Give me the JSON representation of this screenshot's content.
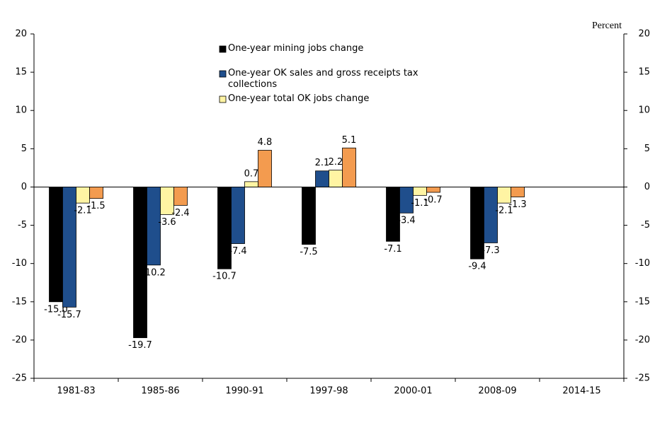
{
  "chart_data": {
    "type": "bar",
    "y_label": "Percent",
    "categories": [
      "1981-83",
      "1985-86",
      "1990-91",
      "1997-98",
      "2000-01",
      "2008-09",
      "2014-15"
    ],
    "series": [
      {
        "name": "One-year mining jobs change",
        "color": "#000000",
        "values": [
          -15,
          -19.7,
          -10.7,
          -7.5,
          -7.1,
          -9.4,
          null
        ],
        "value_labels": [
          "-15.0",
          "-19.7",
          "-10.7",
          "-7.5",
          "-7.1",
          "-9.4",
          null
        ]
      },
      {
        "name": "One-year OK sales and gross receipts tax collections",
        "color": "#1f4e8c",
        "values": [
          -15.7,
          -10.2,
          -7.4,
          2.1,
          -3.4,
          -7.3,
          null
        ]
      },
      {
        "name": "One-year total OK jobs change",
        "color": "#fff4a3",
        "values": [
          -2.1,
          -3.6,
          0.7,
          2.2,
          -1.1,
          -2.1,
          null
        ]
      },
      {
        "color": "#f39b4f",
        "values": [
          -1.5,
          -2.4,
          4.8,
          5.1,
          -0.7,
          -1.3,
          null
        ]
      }
    ],
    "ylim": [
      -25,
      20
    ],
    "yticks": [
      -25,
      -20,
      -15,
      -10,
      -5,
      0,
      5,
      10,
      15,
      20
    ],
    "y2lim": [
      -25,
      20
    ],
    "y2ticks": [
      -25,
      -20,
      -15,
      -10,
      -5,
      0,
      5,
      10,
      15,
      20
    ]
  }
}
